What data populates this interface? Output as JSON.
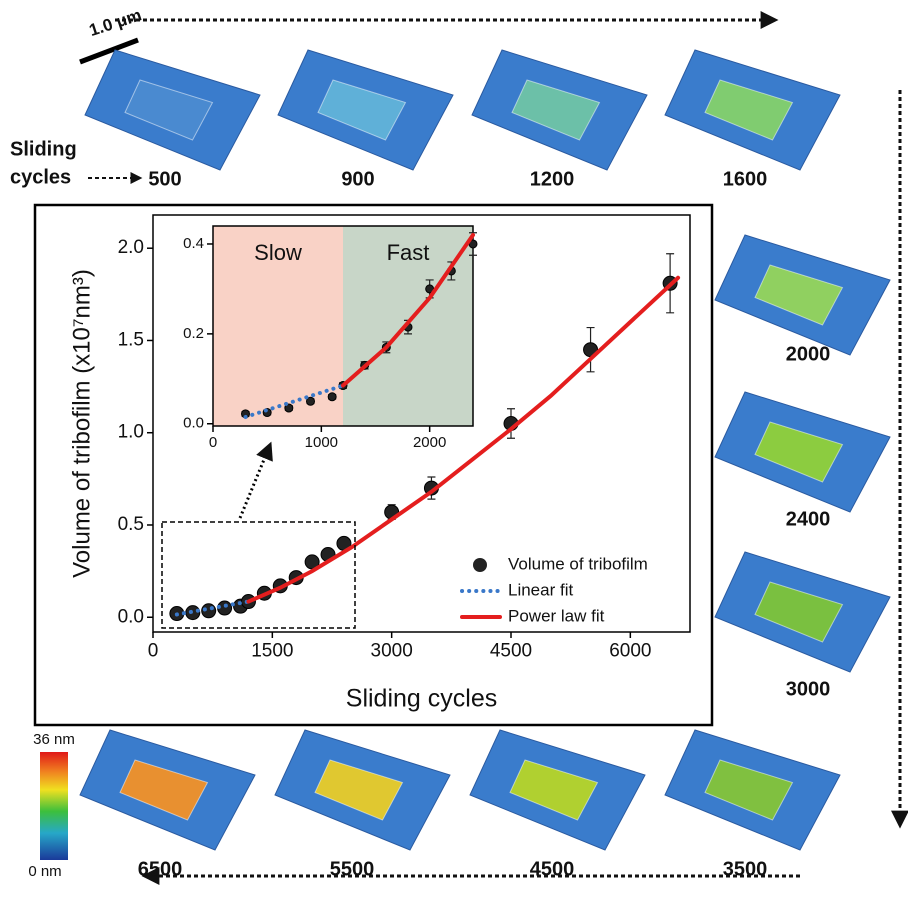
{
  "chart_data": [
    {
      "type": "scatter",
      "x_label": "Sliding cycles",
      "y_label": "Volume of tribofilm (x10⁷nm³)",
      "xlim": [
        0,
        6750
      ],
      "xticks": [
        0,
        1500,
        3000,
        4500,
        6000
      ],
      "ylim": [
        -0.08,
        2.18
      ],
      "yticks": [
        {
          "value": 0,
          "label": "0.0"
        },
        {
          "value": 0.5,
          "label": "0.5"
        },
        {
          "value": 1,
          "label": "1.0"
        },
        {
          "value": 1.5,
          "label": "1.5"
        },
        {
          "value": 2,
          "label": "2.0"
        }
      ],
      "legend": "bottom-right",
      "series": [
        {
          "name": "Volume of tribofilm",
          "color": "#222222",
          "style": "marker",
          "x": [
            300,
            500,
            700,
            900,
            1100,
            1200,
            1400,
            1600,
            1800,
            2000,
            2200,
            2400,
            3000,
            3500,
            4500,
            5500,
            6500
          ],
          "values": [
            0.02,
            0.025,
            0.035,
            0.05,
            0.06,
            0.085,
            0.13,
            0.17,
            0.215,
            0.3,
            0.34,
            0.4,
            0.57,
            0.7,
            1.05,
            1.45,
            1.81
          ],
          "errors": [
            0.01,
            0.01,
            0.01,
            0.01,
            0.01,
            0.01,
            0.01,
            0.015,
            0.02,
            0.02,
            0.02,
            0.03,
            0.04,
            0.06,
            0.08,
            0.12,
            0.16
          ]
        },
        {
          "name": "Linear fit",
          "color": "#3a78c9",
          "style": "dotted",
          "x": [
            300,
            1200
          ],
          "values": [
            0.015,
            0.085
          ]
        },
        {
          "name": "Power law fit",
          "color": "#e41e1e",
          "style": "solid",
          "x": [
            1200,
            1600,
            2000,
            2500,
            3000,
            3500,
            4000,
            4500,
            5000,
            5500,
            6000,
            6500,
            6600
          ],
          "values": [
            0.085,
            0.16,
            0.25,
            0.38,
            0.53,
            0.68,
            0.85,
            1.02,
            1.2,
            1.4,
            1.6,
            1.8,
            1.84
          ]
        }
      ]
    },
    {
      "type": "scatter",
      "xlim": [
        0,
        2400
      ],
      "xticks": [
        0,
        1000,
        2000
      ],
      "ylim": [
        -0.005,
        0.44
      ],
      "yticks": [
        {
          "value": 0,
          "label": "0.0"
        },
        {
          "value": 0.2,
          "label": "0.2"
        },
        {
          "value": 0.4,
          "label": "0.4"
        }
      ],
      "regions": [
        {
          "label": "Slow",
          "from": 0,
          "to": 1200,
          "color": "#f9d2c6"
        },
        {
          "label": "Fast",
          "from": 1200,
          "to": 2400,
          "color": "#c8d6c8"
        }
      ],
      "series": [
        {
          "name": "Volume of tribofilm",
          "color": "#222222",
          "style": "marker",
          "x": [
            300,
            500,
            700,
            900,
            1100,
            1200,
            1400,
            1600,
            1800,
            2000,
            2200,
            2400
          ],
          "values": [
            0.022,
            0.025,
            0.035,
            0.05,
            0.06,
            0.085,
            0.13,
            0.17,
            0.215,
            0.3,
            0.34,
            0.4
          ],
          "errors": [
            0.005,
            0.005,
            0.005,
            0.005,
            0.005,
            0.006,
            0.008,
            0.012,
            0.015,
            0.02,
            0.02,
            0.025
          ]
        },
        {
          "name": "Linear fit",
          "color": "#3a78c9",
          "style": "dotted",
          "x": [
            300,
            1200
          ],
          "values": [
            0.015,
            0.085
          ]
        },
        {
          "name": "Power law fit",
          "color": "#e41e1e",
          "style": "solid",
          "x": [
            1200,
            1600,
            2000,
            2400
          ],
          "values": [
            0.085,
            0.17,
            0.28,
            0.42
          ]
        }
      ]
    }
  ],
  "panels": {
    "scale_bar": "1.0 μm",
    "start_label": [
      "Sliding",
      "cycles"
    ],
    "tiles": [
      "500",
      "900",
      "1200",
      "1600",
      "2000",
      "2400",
      "3000",
      "3500",
      "4500",
      "5500",
      "6500"
    ],
    "colorbar": {
      "max": "36 nm",
      "min": "0 nm"
    }
  }
}
